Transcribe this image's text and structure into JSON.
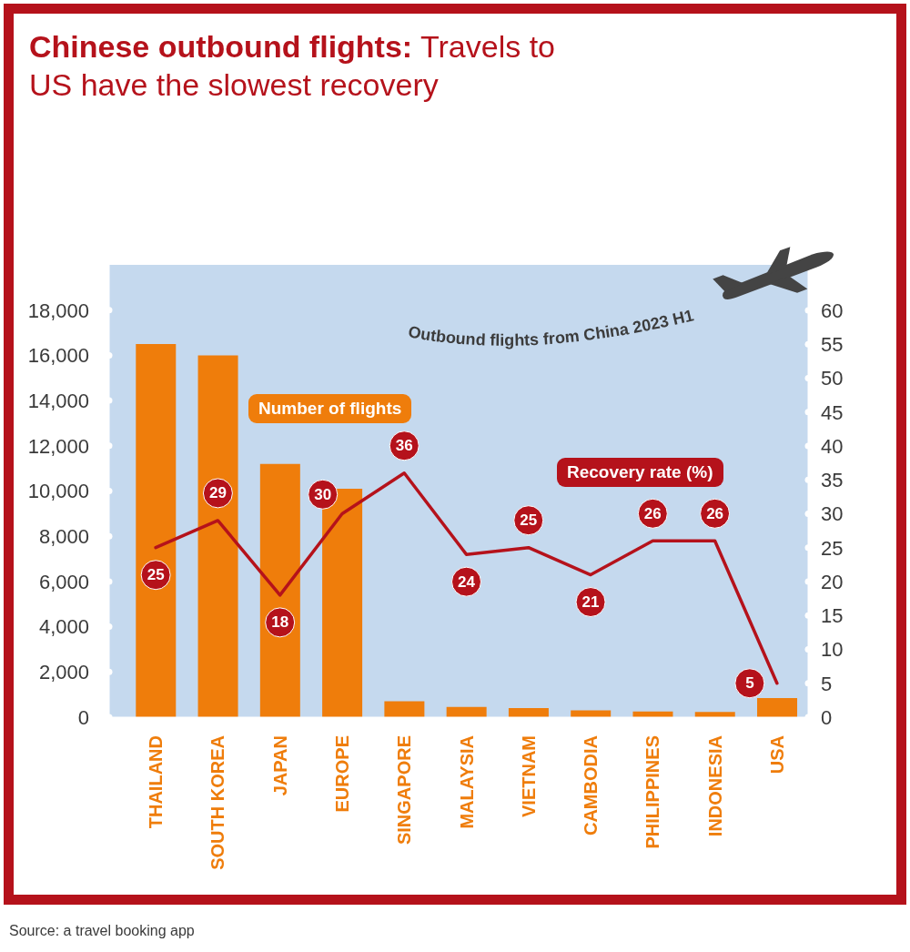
{
  "chart_data": {
    "type": "bar",
    "title": "Chinese outbound flights: Travels to US have the slowest recovery",
    "categories": [
      "THAILAND",
      "SOUTH KOREA",
      "JAPAN",
      "EUROPE",
      "SINGAPORE",
      "MALAYSIA",
      "VIETNAM",
      "CAMBODIA",
      "PHILIPPINES",
      "INDONESIA",
      "USA"
    ],
    "series": [
      {
        "name": "Number of flights",
        "color": "#ef7d0b",
        "values": [
          16500,
          16000,
          11200,
          10100,
          700,
          450,
          400,
          300,
          250,
          230,
          850
        ]
      },
      {
        "name": "Recovery rate (%)",
        "type": "line",
        "axis": "y2",
        "color": "#b5121b",
        "values": [
          25,
          29,
          18,
          30,
          36,
          24,
          25,
          21,
          26,
          26,
          5
        ],
        "value_labels": [
          "25",
          "29",
          "18",
          "30",
          "36",
          "24",
          "25",
          "21",
          "26",
          "26",
          "5"
        ]
      }
    ],
    "ylim": [
      0,
      20000
    ],
    "yticks": [
      0,
      {
        "value": 2000,
        "label": "2,000"
      },
      {
        "value": 4000,
        "label": "4,000"
      },
      {
        "value": 6000,
        "label": "6,000"
      },
      {
        "value": 8000,
        "label": "8,000"
      },
      {
        "value": 10000,
        "label": "10,000"
      },
      {
        "value": 12000,
        "label": "12,000"
      },
      {
        "value": 14000,
        "label": "14,000"
      },
      {
        "value": 16000,
        "label": "16,000"
      },
      {
        "value": 18000,
        "label": "18,000"
      }
    ],
    "y2lim": [
      0,
      66.7
    ],
    "y2ticks": [
      0,
      5,
      10,
      15,
      20,
      25,
      30,
      35,
      40,
      45,
      50,
      55,
      60
    ],
    "marker": "none",
    "annotations": [
      "Outbound flights from China 2023 H1",
      "Source: a travel booking app"
    ]
  }
}
